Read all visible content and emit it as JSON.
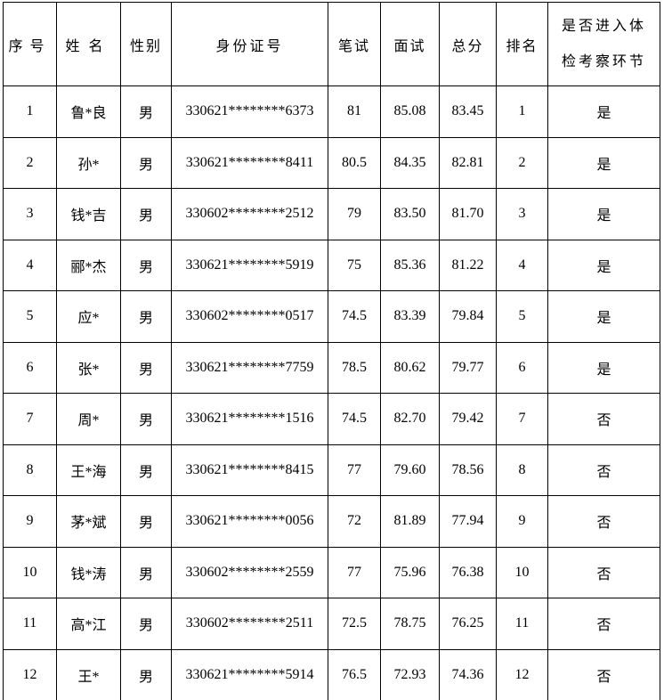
{
  "table": {
    "columns": [
      {
        "label": "序号"
      },
      {
        "label": "姓名"
      },
      {
        "label": "性别"
      },
      {
        "label": "身份证号"
      },
      {
        "label": "笔试"
      },
      {
        "label": "面试"
      },
      {
        "label": "总分"
      },
      {
        "label": "排名"
      },
      {
        "label": "是否进入体检考察环节"
      }
    ],
    "rows": [
      {
        "serial": "1",
        "name": "鲁*良",
        "gender": "男",
        "id_number": "330621********6373",
        "written": "81",
        "interview": "85.08",
        "total": "83.45",
        "rank": "1",
        "advance": "是"
      },
      {
        "serial": "2",
        "name": "孙*",
        "gender": "男",
        "id_number": "330621********8411",
        "written": "80.5",
        "interview": "84.35",
        "total": "82.81",
        "rank": "2",
        "advance": "是"
      },
      {
        "serial": "3",
        "name": "钱*吉",
        "gender": "男",
        "id_number": "330602********2512",
        "written": "79",
        "interview": "83.50",
        "total": "81.70",
        "rank": "3",
        "advance": "是"
      },
      {
        "serial": "4",
        "name": "郦*杰",
        "gender": "男",
        "id_number": "330621********5919",
        "written": "75",
        "interview": "85.36",
        "total": "81.22",
        "rank": "4",
        "advance": "是"
      },
      {
        "serial": "5",
        "name": "应*",
        "gender": "男",
        "id_number": "330602********0517",
        "written": "74.5",
        "interview": "83.39",
        "total": "79.84",
        "rank": "5",
        "advance": "是"
      },
      {
        "serial": "6",
        "name": "张*",
        "gender": "男",
        "id_number": "330621********7759",
        "written": "78.5",
        "interview": "80.62",
        "total": "79.77",
        "rank": "6",
        "advance": "是"
      },
      {
        "serial": "7",
        "name": "周*",
        "gender": "男",
        "id_number": "330621********1516",
        "written": "74.5",
        "interview": "82.70",
        "total": "79.42",
        "rank": "7",
        "advance": "否"
      },
      {
        "serial": "8",
        "name": "王*海",
        "gender": "男",
        "id_number": "330621********8415",
        "written": "77",
        "interview": "79.60",
        "total": "78.56",
        "rank": "8",
        "advance": "否"
      },
      {
        "serial": "9",
        "name": "茅*斌",
        "gender": "男",
        "id_number": "330621********0056",
        "written": "72",
        "interview": "81.89",
        "total": "77.94",
        "rank": "9",
        "advance": "否"
      },
      {
        "serial": "10",
        "name": "钱*涛",
        "gender": "男",
        "id_number": "330602********2559",
        "written": "77",
        "interview": "75.96",
        "total": "76.38",
        "rank": "10",
        "advance": "否"
      },
      {
        "serial": "11",
        "name": "高*江",
        "gender": "男",
        "id_number": "330602********2511",
        "written": "72.5",
        "interview": "78.75",
        "total": "76.25",
        "rank": "11",
        "advance": "否"
      },
      {
        "serial": "12",
        "name": "王*",
        "gender": "男",
        "id_number": "330621********5914",
        "written": "76.5",
        "interview": "72.93",
        "total": "74.36",
        "rank": "12",
        "advance": "否"
      }
    ]
  }
}
